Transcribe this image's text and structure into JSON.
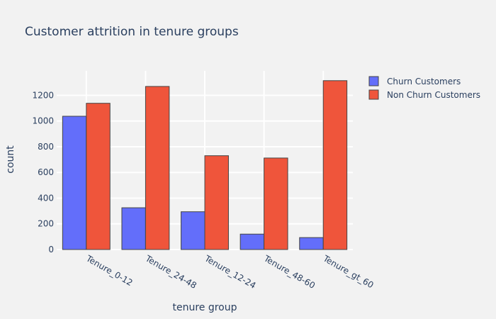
{
  "chart_data": {
    "type": "bar",
    "title": "Customer attrition in tenure groups",
    "xlabel": "tenure group",
    "ylabel": "count",
    "categories": [
      "Tenure_0-12",
      "Tenure_24-48",
      "Tenure_12-24",
      "Tenure_48-60",
      "Tenure_gt_60"
    ],
    "series": [
      {
        "name": "Churn Customers",
        "values": [
          1037,
          325,
          294,
          120,
          93
        ],
        "color": "#636efa"
      },
      {
        "name": "Non Churn Customers",
        "values": [
          1138,
          1269,
          730,
          712,
          1314
        ],
        "color": "#ef553b"
      }
    ],
    "ylim": [
      0,
      1390
    ],
    "yticks": [
      0,
      200,
      400,
      600,
      800,
      1000,
      1200
    ],
    "grid": true,
    "legend": "top-right",
    "colors": {
      "background": "#f2f2f2",
      "gridline": "#ffffff",
      "text": "#2a3f5f",
      "bar_outline": "#444444"
    }
  }
}
